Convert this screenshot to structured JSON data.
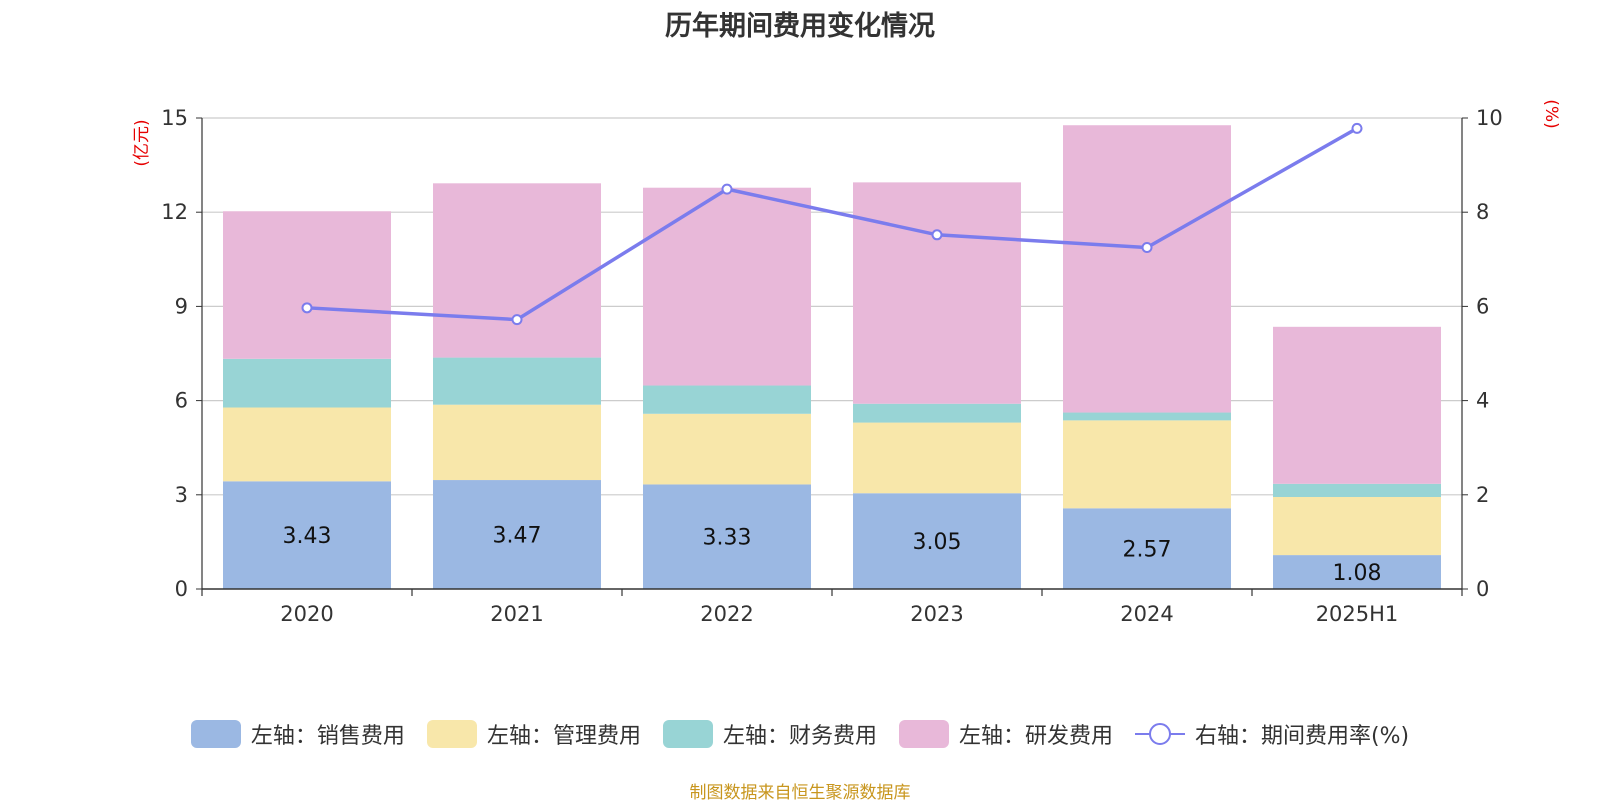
{
  "chart_data": {
    "type": "bar",
    "title": "历年期间费用变化情况",
    "left_unit": "(亿元)",
    "right_unit": "(%)",
    "categories": [
      "2020",
      "2021",
      "2022",
      "2023",
      "2024",
      "2025H1"
    ],
    "left_axis": {
      "ylim": [
        0,
        15
      ],
      "ticks": [
        0,
        3,
        6,
        9,
        12,
        15
      ]
    },
    "right_axis": {
      "ylim": [
        0,
        10
      ],
      "ticks": [
        0,
        2,
        4,
        6,
        8,
        10
      ]
    },
    "grid": true,
    "legend_position": "bottom",
    "series": [
      {
        "name": "左轴：销售费用",
        "type": "bar",
        "axis": "left",
        "color": "#9bb8e3",
        "values": [
          3.43,
          3.47,
          3.33,
          3.05,
          2.57,
          1.08
        ],
        "labels": [
          "3.43",
          "3.47",
          "3.33",
          "3.05",
          "2.57",
          "1.08"
        ]
      },
      {
        "name": "左轴：管理费用",
        "type": "bar",
        "axis": "left",
        "color": "#f8e7aa",
        "values": [
          2.35,
          2.4,
          2.25,
          2.25,
          2.8,
          1.85
        ]
      },
      {
        "name": "左轴：财务费用",
        "type": "bar",
        "axis": "left",
        "color": "#98d4d5",
        "values": [
          1.55,
          1.5,
          0.9,
          0.6,
          0.25,
          0.42
        ]
      },
      {
        "name": "左轴：研发费用",
        "type": "bar",
        "axis": "left",
        "color": "#e8b8d9",
        "values": [
          4.7,
          5.55,
          6.3,
          7.05,
          9.15,
          5.0
        ]
      },
      {
        "name": "右轴：期间费用率(%)",
        "type": "line",
        "axis": "right",
        "color": "#7b7ced",
        "values": [
          5.97,
          5.72,
          8.49,
          7.52,
          7.25,
          9.78
        ]
      }
    ]
  },
  "source": "制图数据来自恒生聚源数据库"
}
